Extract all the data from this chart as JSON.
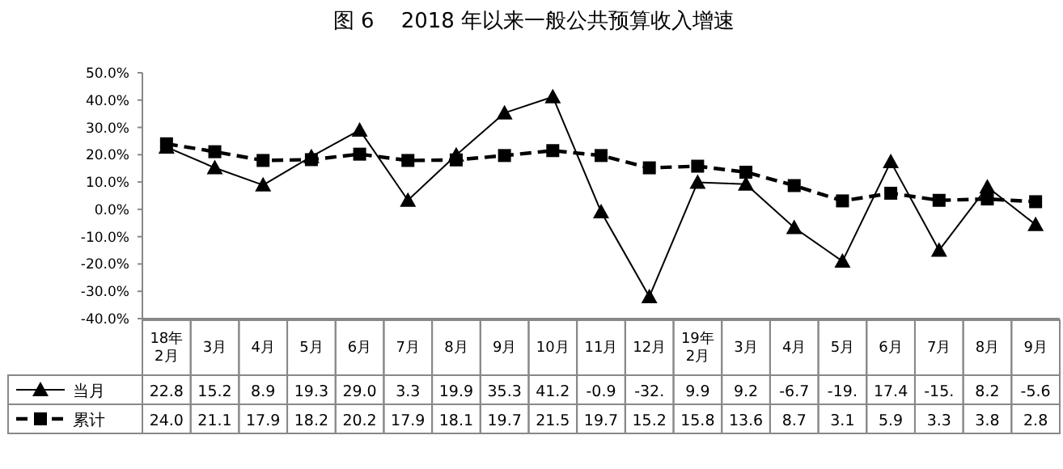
{
  "chart_data": {
    "type": "line",
    "title": "图 6    2018 年以来一般公共预算收入增速",
    "categories": [
      "18年\n2月",
      "3月",
      "4月",
      "5月",
      "6月",
      "7月",
      "8月",
      "9月",
      "10月",
      "11月",
      "12月",
      "19年\n2月",
      "3月",
      "4月",
      "5月",
      "6月",
      "7月",
      "8月",
      "9月"
    ],
    "series": [
      {
        "name": "当月",
        "color": "#000000",
        "marker": "triangle",
        "line_style": "solid",
        "values": [
          22.8,
          15.2,
          8.9,
          19.3,
          29.0,
          3.3,
          19.9,
          35.3,
          41.2,
          -0.9,
          -32,
          9.9,
          9.2,
          -6.7,
          -19,
          17.4,
          -15,
          8.2,
          -5.6
        ],
        "value_labels": [
          "22.8",
          "15.2",
          "8.9",
          "19.3",
          "29.0",
          "3.3",
          "19.9",
          "35.3",
          "41.2",
          "-0.9",
          "-32.",
          "9.9",
          "9.2",
          "-6.7",
          "-19.",
          "17.4",
          "-15.",
          "8.2",
          "-5.6"
        ]
      },
      {
        "name": "累计",
        "color": "#000000",
        "marker": "square",
        "line_style": "dashed",
        "values": [
          24.0,
          21.1,
          17.9,
          18.2,
          20.2,
          17.9,
          18.1,
          19.7,
          21.5,
          19.7,
          15.2,
          15.8,
          13.6,
          8.7,
          3.1,
          5.9,
          3.3,
          3.8,
          2.8
        ],
        "value_labels": [
          "24.0",
          "21.1",
          "17.9",
          "18.2",
          "20.2",
          "17.9",
          "18.1",
          "19.7",
          "21.5",
          "19.7",
          "15.2",
          "15.8",
          "13.6",
          "8.7",
          "3.1",
          "5.9",
          "3.3",
          "3.8",
          "2.8"
        ]
      }
    ],
    "ylim": [
      -40,
      50
    ],
    "yticks": [
      {
        "value": 50,
        "label": "50.0%"
      },
      {
        "value": 40,
        "label": "40.0%"
      },
      {
        "value": 30,
        "label": "30.0%"
      },
      {
        "value": 20,
        "label": "20.0%"
      },
      {
        "value": 10,
        "label": "10.0%"
      },
      {
        "value": 0,
        "label": "0.0%"
      },
      {
        "value": -10,
        "label": "-10.0%"
      },
      {
        "value": -20,
        "label": "-20.0%"
      },
      {
        "value": -30,
        "label": "-30.0%"
      },
      {
        "value": -40,
        "label": "-40.0%"
      }
    ],
    "grid": false,
    "legend": "bottom left"
  }
}
